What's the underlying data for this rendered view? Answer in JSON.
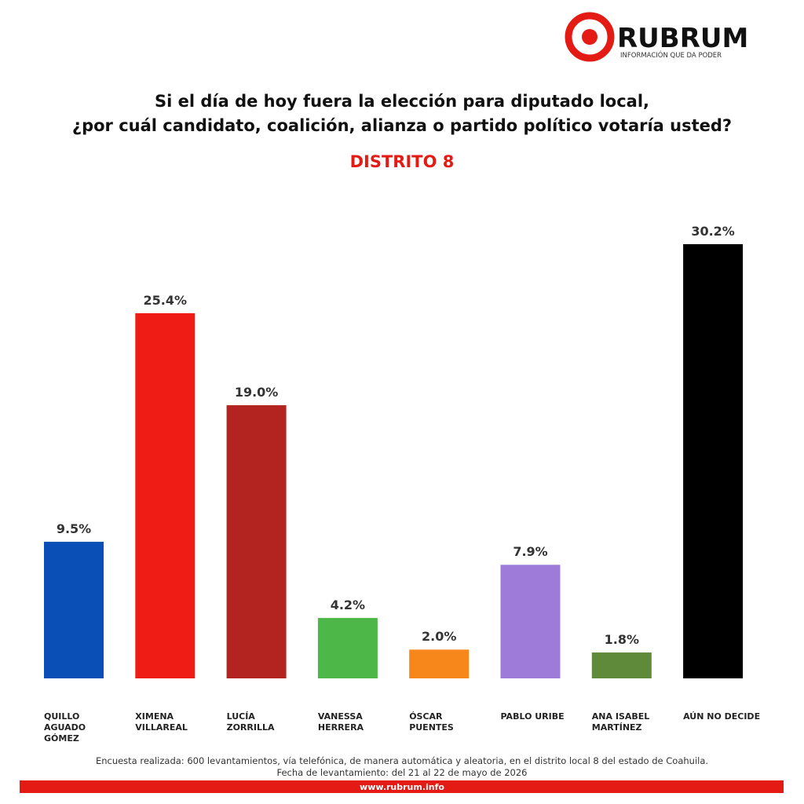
{
  "logo": {
    "name": "RUBRUM",
    "tagline": "INFORMACIÓN QUE DA PODER"
  },
  "chart_data": {
    "type": "bar",
    "title": "Si el día de hoy fuera la elección para diputado local,\n¿por cuál candidato, coalición, alianza o partido político votaría usted?",
    "subtitle": "DISTRITO 8",
    "categories": [
      "QUILLO\nAGUADO\nGÓMEZ",
      "XIMENA\nVILLAREAL",
      "LUCÍA\nZORRILLA",
      "VANESSA\nHERRERA",
      "ÓSCAR\nPUENTES",
      "PABLO URIBE",
      "ANA ISABEL\nMARTÍNEZ",
      "AÚN NO DECIDE"
    ],
    "values": [
      9.5,
      25.4,
      19.0,
      4.2,
      2.0,
      7.9,
      1.8,
      30.2
    ],
    "value_labels": [
      "9.5%",
      "25.4%",
      "19.0%",
      "4.2%",
      "2.0%",
      "7.9%",
      "1.8%",
      "30.2%"
    ],
    "colors": [
      "#0a4fb5",
      "#ee1c14",
      "#b3231f",
      "#4db848",
      "#f7861b",
      "#9e7bd8",
      "#5e8a3a",
      "#000000"
    ]
  },
  "footer": {
    "note": "Encuesta realizada: 600 levantamientos, vía telefónica, de manera automática y aleatoria, en el distrito local 8 del estado de Coahuila.",
    "date": "Fecha de levantamiento: del 21 al 22 de mayo de 2026",
    "url": "www.rubrum.info"
  }
}
